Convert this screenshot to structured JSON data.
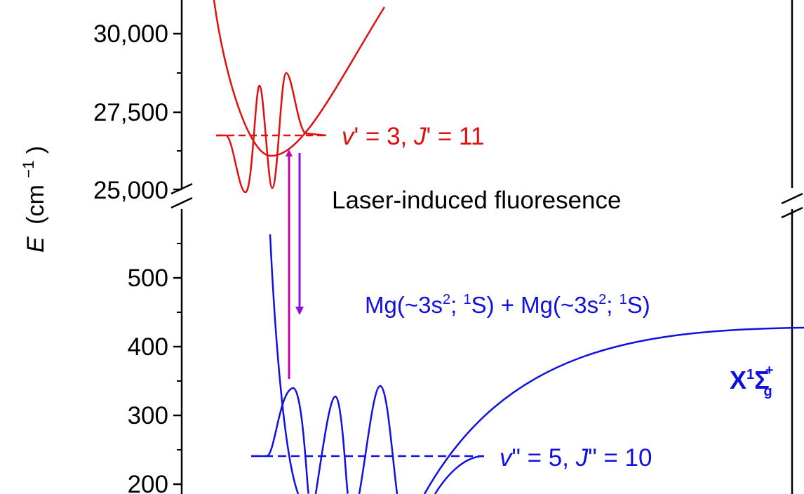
{
  "chart_data": {
    "type": "line",
    "ylabel": {
      "main": "E",
      "unit": "(cm",
      "sup": "−1",
      "close": ")"
    },
    "yticks_upper": [
      "30,000",
      "27,500",
      "25,000"
    ],
    "yticks_lower": [
      "500",
      "400",
      "300",
      "200"
    ],
    "axis_break": true,
    "annotations": {
      "upper_level": {
        "v": "v",
        "vsuf": "' = 3, ",
        "j": "J",
        "jsuf": "' = 11"
      },
      "lower_level": {
        "v": "v",
        "vsuf": "\" = 5, ",
        "j": "J",
        "jsuf": "\" = 10"
      },
      "transition": "Laser-induced fluoresence",
      "asymptote": {
        "a": "Mg(~3s",
        "b": "2",
        "c": "; ",
        "d": "1",
        "e": "S) + Mg(~3s",
        "f": "2",
        "g": "; ",
        "h": "1",
        "i": "S)"
      },
      "state": {
        "x": "X",
        "one": "1",
        "sigma": "Σ",
        "plus": "+",
        "g": "g"
      }
    },
    "colors": {
      "upper": "#e01010",
      "lower": "#1010e0",
      "arrow_up": "#cc00aa",
      "arrow_down": "#8a10e0",
      "axis": "#000000"
    }
  }
}
